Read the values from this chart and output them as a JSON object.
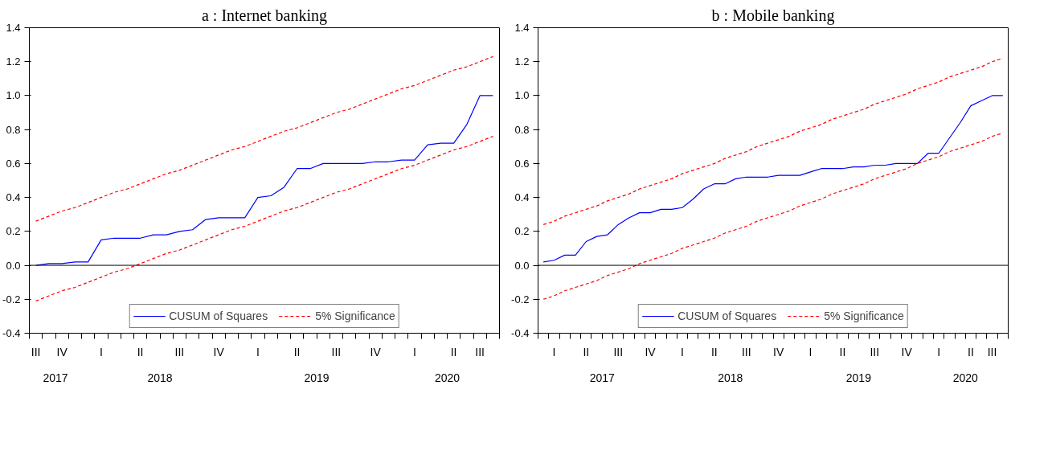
{
  "chart_data": [
    {
      "type": "line",
      "title": "a : Internet banking",
      "legend": "bottom",
      "grid": false,
      "marker": "none",
      "categories": [
        "III",
        null,
        "IV",
        null,
        null,
        "I",
        null,
        null,
        "II",
        null,
        null,
        "III",
        null,
        null,
        "IV",
        null,
        null,
        "I",
        null,
        null,
        "II",
        null,
        null,
        "III",
        null,
        null,
        "IV",
        null,
        null,
        "I",
        null,
        null,
        "II",
        null,
        "III",
        null
      ],
      "series": [
        {
          "name": "CUSUM of Squares",
          "color": "#0000ff",
          "line_style": "solid",
          "values": [
            0.0,
            0.01,
            0.01,
            0.02,
            0.02,
            0.15,
            0.16,
            0.16,
            0.16,
            0.18,
            0.18,
            0.2,
            0.21,
            0.27,
            0.28,
            0.28,
            0.28,
            0.4,
            0.41,
            0.46,
            0.57,
            0.57,
            0.6,
            0.6,
            0.6,
            0.6,
            0.61,
            0.61,
            0.62,
            0.62,
            0.71,
            0.72,
            0.72,
            0.83,
            1.0,
            1.0
          ]
        },
        {
          "name": "5% Significance",
          "color": "#ff0000",
          "line_style": "dashed",
          "values": [
            0.26,
            0.29,
            0.32,
            0.34,
            0.37,
            0.4,
            0.43,
            0.45,
            0.48,
            0.51,
            0.54,
            0.56,
            0.59,
            0.62,
            0.65,
            0.68,
            0.7,
            0.73,
            0.76,
            0.79,
            0.81,
            0.84,
            0.87,
            0.9,
            0.92,
            0.95,
            0.98,
            1.01,
            1.04,
            1.06,
            1.09,
            1.12,
            1.15,
            1.17,
            1.2,
            1.23
          ]
        },
        {
          "color": "#ff0000",
          "line_style": "dashed",
          "values": [
            -0.21,
            -0.18,
            -0.15,
            -0.13,
            -0.1,
            -0.07,
            -0.04,
            -0.02,
            0.01,
            0.04,
            0.07,
            0.09,
            0.12,
            0.15,
            0.18,
            0.21,
            0.23,
            0.26,
            0.29,
            0.32,
            0.34,
            0.37,
            0.4,
            0.43,
            0.45,
            0.48,
            0.51,
            0.54,
            0.57,
            0.59,
            0.62,
            0.65,
            0.68,
            0.7,
            0.73,
            0.76
          ]
        }
      ],
      "annotations": [
        "2017",
        "2018",
        "2019",
        "2020"
      ],
      "ylim": [
        -0.4,
        1.4
      ],
      "yticks": [
        {
          "value": -0.4,
          "label": "-0.4"
        },
        {
          "value": -0.2,
          "label": "-0.2"
        },
        {
          "value": 0,
          "label": "0.0"
        },
        {
          "value": 0.2,
          "label": "0.2"
        },
        {
          "value": 0.4,
          "label": "0.4"
        },
        {
          "value": 0.6,
          "label": "0.6"
        },
        {
          "value": 0.8,
          "label": "0.8"
        },
        {
          "value": 1,
          "label": "1.0"
        },
        {
          "value": 1.2,
          "label": "1.2"
        },
        {
          "value": 1.4,
          "label": "1.4"
        }
      ],
      "ref_lines": [
        {
          "axis": "y",
          "value": 0,
          "color": "#000000",
          "line_style": "solid"
        }
      ]
    },
    {
      "type": "line",
      "title": "b : Mobile banking",
      "legend": "bottom",
      "grid": false,
      "marker": "none",
      "categories": [
        null,
        "I",
        null,
        null,
        "II",
        null,
        null,
        "III",
        null,
        null,
        "IV",
        null,
        null,
        "I",
        null,
        null,
        "II",
        null,
        null,
        "III",
        null,
        null,
        "IV",
        null,
        null,
        "I",
        null,
        null,
        "II",
        null,
        null,
        "III",
        null,
        null,
        "IV",
        null,
        null,
        "I",
        null,
        null,
        "II",
        null,
        "III",
        null
      ],
      "series": [
        {
          "name": "CUSUM of Squares",
          "color": "#0000ff",
          "line_style": "solid",
          "values": [
            0.02,
            0.03,
            0.06,
            0.06,
            0.14,
            0.17,
            0.18,
            0.24,
            0.28,
            0.31,
            0.31,
            0.33,
            0.33,
            0.34,
            0.39,
            0.45,
            0.48,
            0.48,
            0.51,
            0.52,
            0.52,
            0.52,
            0.53,
            0.53,
            0.53,
            0.55,
            0.57,
            0.57,
            0.57,
            0.58,
            0.58,
            0.59,
            0.59,
            0.6,
            0.6,
            0.6,
            0.66,
            0.66,
            0.75,
            0.84,
            0.94,
            0.97,
            1.0,
            1.0
          ]
        },
        {
          "name": "5% Significance",
          "color": "#ff0000",
          "line_style": "dashed",
          "values": [
            0.24,
            0.26,
            0.29,
            0.31,
            0.33,
            0.35,
            0.38,
            0.4,
            0.42,
            0.45,
            0.47,
            0.49,
            0.51,
            0.54,
            0.56,
            0.58,
            0.6,
            0.63,
            0.65,
            0.67,
            0.7,
            0.72,
            0.74,
            0.76,
            0.79,
            0.81,
            0.83,
            0.86,
            0.88,
            0.9,
            0.92,
            0.95,
            0.97,
            0.99,
            1.01,
            1.04,
            1.06,
            1.08,
            1.11,
            1.13,
            1.15,
            1.17,
            1.2,
            1.22
          ]
        },
        {
          "color": "#ff0000",
          "line_style": "dashed",
          "values": [
            -0.2,
            -0.18,
            -0.15,
            -0.13,
            -0.11,
            -0.09,
            -0.06,
            -0.04,
            -0.02,
            0.01,
            0.03,
            0.05,
            0.07,
            0.1,
            0.12,
            0.14,
            0.16,
            0.19,
            0.21,
            0.23,
            0.26,
            0.28,
            0.3,
            0.32,
            0.35,
            0.37,
            0.39,
            0.42,
            0.44,
            0.46,
            0.48,
            0.51,
            0.53,
            0.55,
            0.57,
            0.6,
            0.62,
            0.64,
            0.67,
            0.69,
            0.71,
            0.73,
            0.76,
            0.78
          ]
        }
      ],
      "annotations": [
        "2017",
        "2018",
        "2019",
        "2020"
      ],
      "ylim": [
        -0.4,
        1.4
      ],
      "yticks": [
        {
          "value": -0.4,
          "label": "-0.4"
        },
        {
          "value": -0.2,
          "label": "-0.2"
        },
        {
          "value": 0,
          "label": "0.0"
        },
        {
          "value": 0.2,
          "label": "0.2"
        },
        {
          "value": 0.4,
          "label": "0.4"
        },
        {
          "value": 0.6,
          "label": "0.6"
        },
        {
          "value": 0.8,
          "label": "0.8"
        },
        {
          "value": 1,
          "label": "1.0"
        },
        {
          "value": 1.2,
          "label": "1.2"
        },
        {
          "value": 1.4,
          "label": "1.4"
        }
      ],
      "ref_lines": [
        {
          "axis": "y",
          "value": 0,
          "color": "#000000",
          "line_style": "solid"
        }
      ]
    }
  ]
}
